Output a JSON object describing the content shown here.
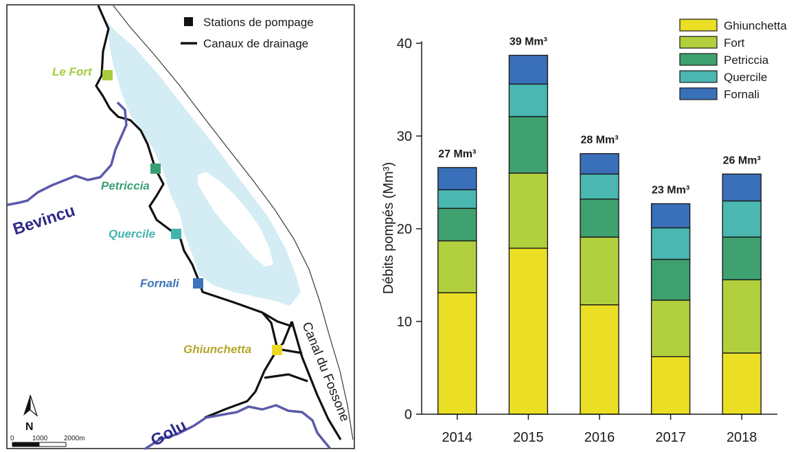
{
  "map": {
    "legend": {
      "stations": "Stations de pompage",
      "canals": "Canaux de drainage"
    },
    "stations": [
      {
        "label": "Le Fort",
        "color": "#a7cc3c"
      },
      {
        "label": "Petriccia",
        "color": "#3a9e74"
      },
      {
        "label": "Quercile",
        "color": "#44b3b0"
      },
      {
        "label": "Fornali",
        "color": "#3b74ba"
      },
      {
        "label": "Ghiunchetta",
        "color": "#eed823",
        "text_color": "#b5a62a"
      }
    ],
    "rivers": {
      "bevincu": "Bevincu",
      "golu": "Golu",
      "color": "#5b5aaa",
      "label_color": "#2e2b88"
    },
    "canal_name": "Canal du Fossone",
    "north": "N",
    "scale": {
      "ticks": [
        "0",
        "1000",
        "2000m"
      ]
    },
    "lagoon_color": "#d4ecf4"
  },
  "chart_data": {
    "type": "bar",
    "stacked": true,
    "categories": [
      "2014",
      "2015",
      "2016",
      "2017",
      "2018"
    ],
    "series": [
      {
        "name": "Ghiunchetta",
        "color": "#eadf24",
        "values": [
          13.1,
          17.9,
          11.8,
          6.2,
          6.6
        ]
      },
      {
        "name": "Fort",
        "color": "#b2cf3e",
        "values": [
          5.6,
          8.1,
          7.3,
          6.1,
          7.9
        ]
      },
      {
        "name": "Petriccia",
        "color": "#3fa070",
        "values": [
          3.5,
          6.1,
          4.1,
          4.4,
          4.6
        ]
      },
      {
        "name": "Quercile",
        "color": "#4ab7b1",
        "values": [
          2.0,
          3.5,
          2.7,
          3.4,
          3.9
        ]
      },
      {
        "name": "Fornali",
        "color": "#3a6fb9",
        "values": [
          2.4,
          3.1,
          2.2,
          2.6,
          2.9
        ]
      }
    ],
    "totals": [
      "27 Mm³",
      "39 Mm³",
      "28 Mm³",
      "23 Mm³",
      "26 Mm³"
    ],
    "ylabel": "Débits pompés (Mm³)",
    "xlabel": "",
    "ylim": [
      0,
      40
    ],
    "yticks": [
      0,
      10,
      20,
      30,
      40
    ],
    "grid": false,
    "legend_position": "top-right"
  }
}
